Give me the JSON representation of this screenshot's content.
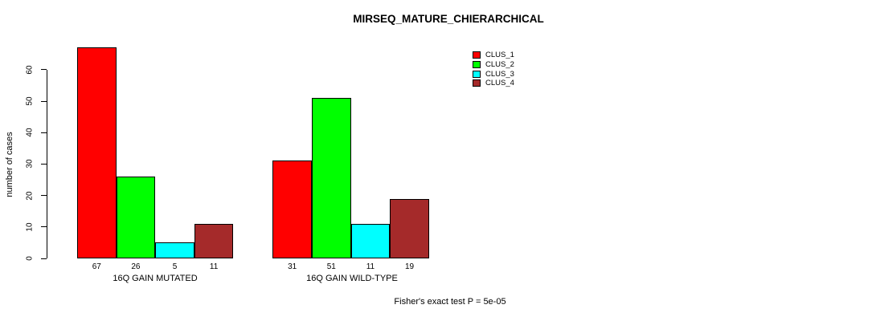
{
  "title": "MIRSEQ_MATURE_CHIERARCHICAL",
  "footnote": "Fisher's exact test P = 5e-05",
  "legend": [
    {
      "label": "CLUS_1",
      "color": "#FF0000"
    },
    {
      "label": "CLUS_2",
      "color": "#00FF00"
    },
    {
      "label": "CLUS_3",
      "color": "#00FFFF"
    },
    {
      "label": "CLUS_4",
      "color": "#A52A2A"
    }
  ],
  "chart_data": {
    "type": "bar",
    "title": "MIRSEQ_MATURE_CHIERARCHICAL",
    "xlabel": "",
    "ylabel": "number of cases",
    "categories": [
      "16Q GAIN MUTATED",
      "16Q GAIN WILD-TYPE"
    ],
    "series": [
      {
        "name": "CLUS_1",
        "color": "#FF0000",
        "values": [
          67,
          31
        ]
      },
      {
        "name": "CLUS_2",
        "color": "#00FF00",
        "values": [
          26,
          51
        ]
      },
      {
        "name": "CLUS_3",
        "color": "#00FFFF",
        "values": [
          5,
          11
        ]
      },
      {
        "name": "CLUS_4",
        "color": "#A52A2A",
        "values": [
          11,
          19
        ]
      }
    ],
    "bar_labels": [
      [
        67,
        26,
        5,
        11
      ],
      [
        31,
        51,
        11,
        19
      ]
    ],
    "yticks": [
      0,
      10,
      20,
      30,
      40,
      50,
      60
    ],
    "ylim": [
      0,
      67
    ],
    "grid": false,
    "legend_position": "top-right",
    "annotation": "Fisher's exact test P = 5e-05"
  }
}
